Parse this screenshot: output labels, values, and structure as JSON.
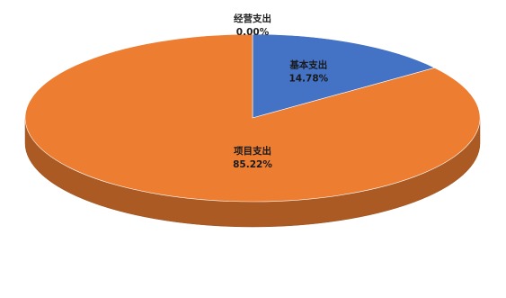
{
  "chart_data": {
    "type": "pie",
    "style": "3d",
    "title": "",
    "slices": [
      {
        "name": "经营支出",
        "value": 0.0,
        "label": "0.00%",
        "color": "#A5A5A5",
        "label_color": "#222222"
      },
      {
        "name": "基本支出",
        "value": 14.78,
        "label": "14.78%",
        "color": "#4472C4",
        "label_color": "#1a1a1a"
      },
      {
        "name": "项目支出",
        "value": 85.22,
        "label": "85.22%",
        "color": "#ED7D31",
        "label_color": "#1a1a1a"
      }
    ],
    "legend": "none"
  }
}
